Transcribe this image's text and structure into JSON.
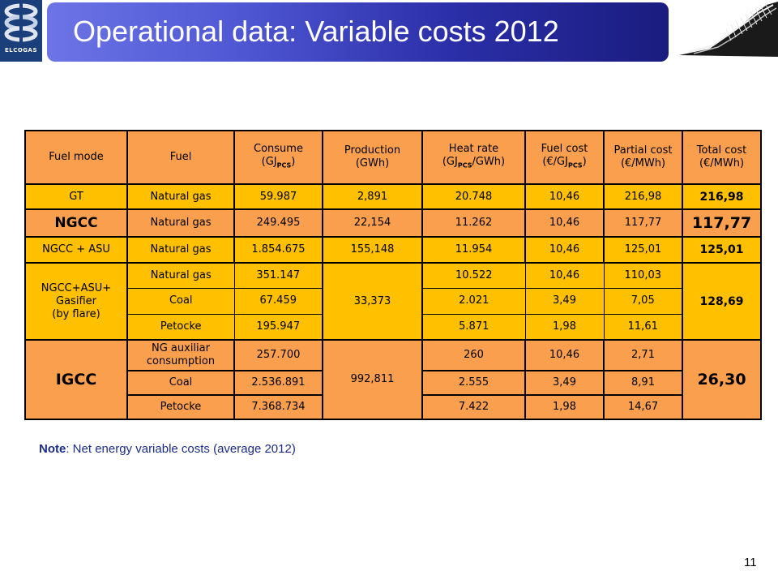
{
  "logo": {
    "text": "ELCOGAS"
  },
  "title": "Operational data: Variable costs 2012",
  "table": {
    "headers": {
      "fuel_mode": "Fuel mode",
      "fuel": "Fuel",
      "consume": "Consume",
      "consume_unit": "(GJ",
      "consume_sub": "PCS",
      "consume_unit_end": ")",
      "production": "Production",
      "production_unit": "(GWh)",
      "heat_rate": "Heat rate",
      "heat_rate_unit": "(GJ",
      "heat_rate_sub": "PCS",
      "heat_rate_unit_end": "/GWh)",
      "fuel_cost": "Fuel cost",
      "fuel_cost_unit": "(€/GJ",
      "fuel_cost_sub": "PCS",
      "fuel_cost_unit_end": ")",
      "partial_cost": "Partial cost",
      "partial_cost_unit": "(€/MWh)",
      "total_cost": "Total cost",
      "total_cost_unit": "(€/MWh)"
    },
    "gt": {
      "mode": "GT",
      "fuel": "Natural gas",
      "consume": "59.987",
      "production": "2,891",
      "heat_rate": "20.748",
      "fuel_cost": "10,46",
      "partial_cost": "216,98",
      "total_cost": "216,98"
    },
    "ngcc": {
      "mode": "NGCC",
      "fuel": "Natural gas",
      "consume": "249.495",
      "production": "22,154",
      "heat_rate": "11.262",
      "fuel_cost": "10,46",
      "partial_cost": "117,77",
      "total_cost": "117,77"
    },
    "ngcc_asu": {
      "mode": "NGCC + ASU",
      "fuel": "Natural gas",
      "consume": "1.854.675",
      "production": "155,148",
      "heat_rate": "11.954",
      "fuel_cost": "10,46",
      "partial_cost": "125,01",
      "total_cost": "125,01"
    },
    "gasifier": {
      "mode_line1": "NGCC+ASU+",
      "mode_line2": "Gasifier",
      "mode_line3": "(by flare)",
      "production": "33,373",
      "total_cost": "128,69",
      "rows": [
        {
          "fuel": "Natural gas",
          "consume": "351.147",
          "heat_rate": "10.522",
          "fuel_cost": "10,46",
          "partial_cost": "110,03"
        },
        {
          "fuel": "Coal",
          "consume": "67.459",
          "heat_rate": "2.021",
          "fuel_cost": "3,49",
          "partial_cost": "7,05"
        },
        {
          "fuel": "Petocke",
          "consume": "195.947",
          "heat_rate": "5.871",
          "fuel_cost": "1,98",
          "partial_cost": "11,61"
        }
      ]
    },
    "igcc": {
      "mode": "IGCC",
      "production": "992,811",
      "total_cost": "26,30",
      "rows": [
        {
          "fuel_line1": "NG auxiliar",
          "fuel_line2": "consumption",
          "consume": "257.700",
          "heat_rate": "260",
          "fuel_cost": "10,46",
          "partial_cost": "2,71"
        },
        {
          "fuel": "Coal",
          "consume": "2.536.891",
          "heat_rate": "2.555",
          "fuel_cost": "3,49",
          "partial_cost": "8,91"
        },
        {
          "fuel": "Petocke",
          "consume": "7.368.734",
          "heat_rate": "7.422",
          "fuel_cost": "1,98",
          "partial_cost": "14,67"
        }
      ]
    }
  },
  "note": {
    "label": "Note",
    "text": ":  Net energy variable costs (average 2012)"
  },
  "page_number": "11",
  "colors": {
    "header_orange": "#f99f4d",
    "row_yellow": "#ffc000",
    "title_blue": "#2b2fa8",
    "note_blue": "#1c2c8c"
  }
}
